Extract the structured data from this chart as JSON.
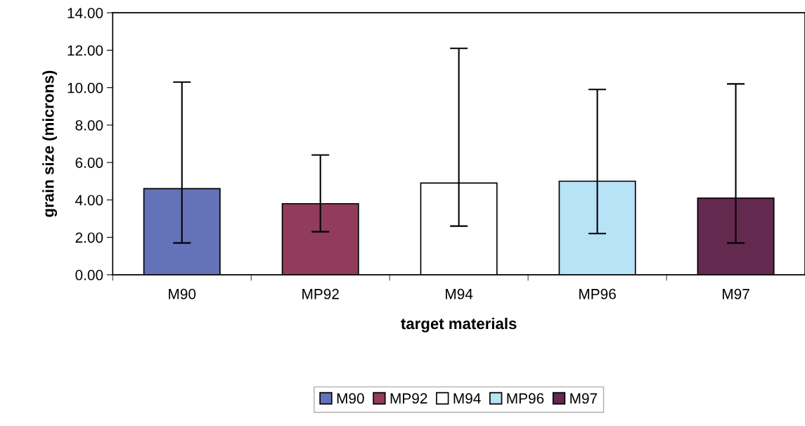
{
  "chart_data": {
    "type": "bar",
    "xlabel": "target materials",
    "ylabel": "grain size (microns)",
    "categories": [
      "M90",
      "MP92",
      "M94",
      "MP96",
      "M97"
    ],
    "series": [
      {
        "name": "M90",
        "color": "#6473b8",
        "values": [
          4.6,
          null,
          null,
          null,
          null
        ],
        "errors": [
          [
            1.7,
            10.3
          ],
          null,
          null,
          null,
          null
        ]
      },
      {
        "name": "MP92",
        "color": "#903c5a",
        "values": [
          null,
          3.8,
          null,
          null,
          null
        ],
        "errors": [
          null,
          [
            2.3,
            6.4
          ],
          null,
          null,
          null
        ]
      },
      {
        "name": "M94",
        "color": "#ffffff",
        "values": [
          null,
          null,
          4.9,
          null,
          null
        ],
        "errors": [
          null,
          null,
          [
            2.6,
            12.1
          ],
          null,
          null
        ]
      },
      {
        "name": "MP96",
        "color": "#b8e2f6",
        "values": [
          null,
          null,
          null,
          5.0,
          null
        ],
        "errors": [
          null,
          null,
          null,
          [
            2.2,
            9.9
          ],
          null
        ]
      },
      {
        "name": "M97",
        "color": "#64294f",
        "values": [
          null,
          null,
          null,
          null,
          4.1
        ],
        "errors": [
          null,
          null,
          null,
          null,
          [
            1.7,
            10.2
          ]
        ]
      }
    ],
    "ylim": [
      0,
      14
    ],
    "yticks": [
      {
        "value": 0,
        "label": "0.00"
      },
      {
        "value": 2,
        "label": "2.00"
      },
      {
        "value": 4,
        "label": "4.00"
      },
      {
        "value": 6,
        "label": "6.00"
      },
      {
        "value": 8,
        "label": "8.00"
      },
      {
        "value": 10,
        "label": "10.00"
      },
      {
        "value": 12,
        "label": "12.00"
      },
      {
        "value": 14,
        "label": "14.00"
      }
    ],
    "grid": false,
    "legend": "bottom"
  }
}
